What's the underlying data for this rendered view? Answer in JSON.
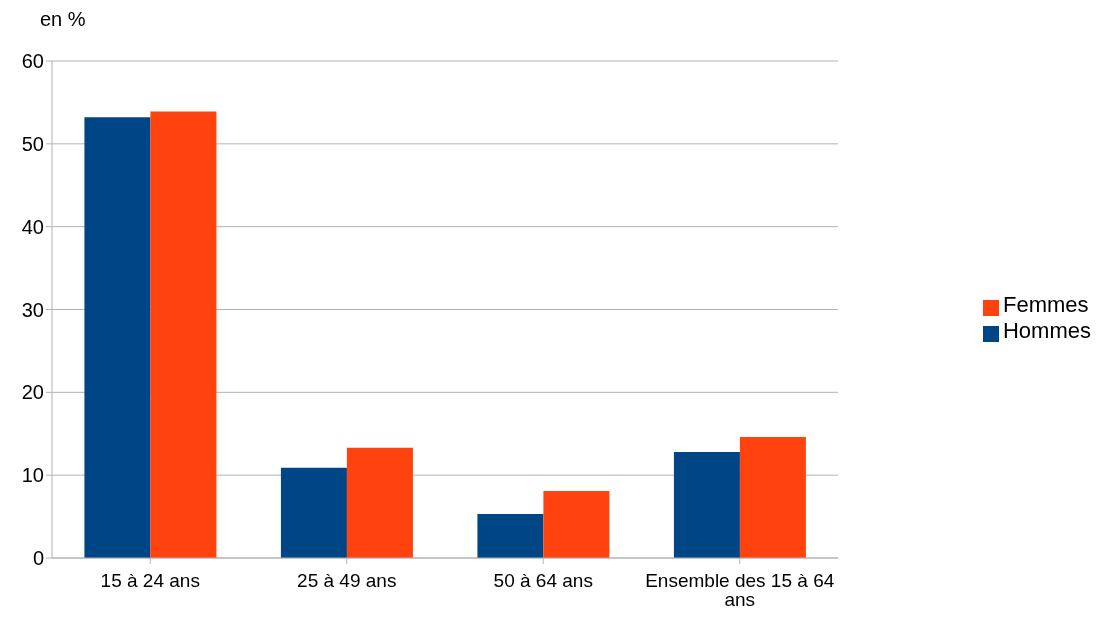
{
  "chart_data": {
    "type": "bar",
    "ylabel": "en %",
    "categories": [
      "15 à 24 ans",
      "25 à 49 ans",
      "50 à 64 ans",
      "Ensemble des 15 à 64 ans"
    ],
    "series": [
      {
        "name": "Hommes",
        "color": "#004586",
        "values": [
          53.2,
          10.9,
          5.3,
          12.8
        ]
      },
      {
        "name": "Femmes",
        "color": "#ff420e",
        "values": [
          53.9,
          13.3,
          8.1,
          14.6
        ]
      }
    ],
    "ylim": [
      0,
      60
    ],
    "yticks": [
      0,
      10,
      20,
      30,
      40,
      50,
      60
    ],
    "grid": "y",
    "legend": "right"
  }
}
